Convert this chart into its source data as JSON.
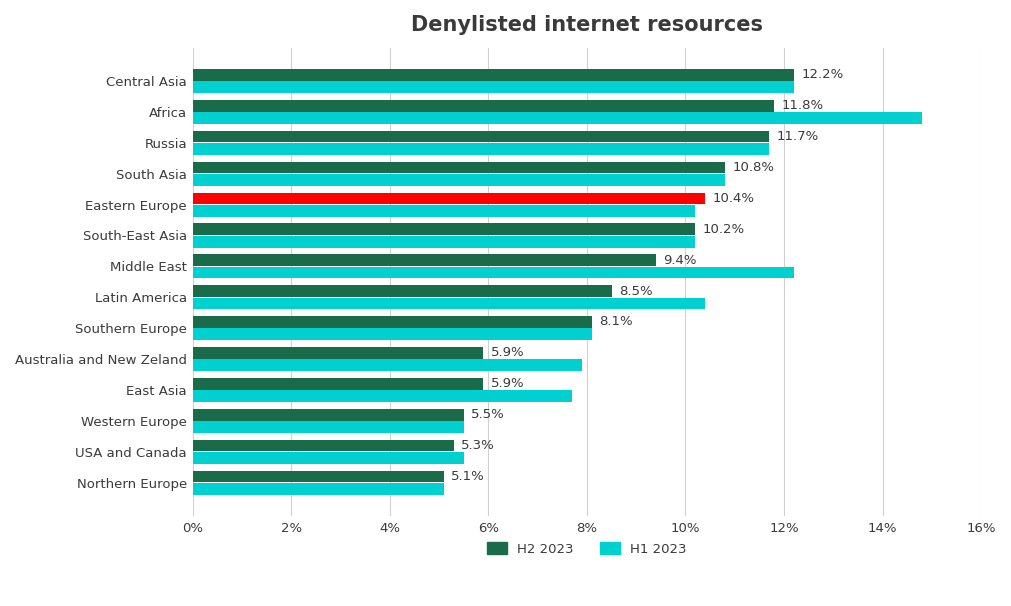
{
  "title": "Denylisted internet resources",
  "categories": [
    "Central Asia",
    "Africa",
    "Russia",
    "South Asia",
    "Eastern Europe",
    "South-East Asia",
    "Middle East",
    "Latin America",
    "Southern Europe",
    "Australia and New Zeland",
    "East Asia",
    "Western Europe",
    "USA and Canada",
    "Northern Europe"
  ],
  "h2_2023": [
    12.2,
    11.8,
    11.7,
    10.8,
    10.4,
    10.2,
    9.4,
    8.5,
    8.1,
    5.9,
    5.9,
    5.5,
    5.3,
    5.1
  ],
  "h1_2023": [
    12.2,
    14.8,
    11.7,
    10.8,
    10.2,
    10.2,
    12.2,
    10.4,
    8.1,
    7.9,
    7.7,
    5.5,
    5.5,
    5.1
  ],
  "h2_color": "#1a6b4a",
  "h1_color": "#00d0d0",
  "eastern_europe_h2_color": "#ff0000",
  "label_color": "#3a3a3a",
  "background_color": "#ffffff",
  "grid_color": "#d0d0d0",
  "xlim": [
    0,
    16
  ],
  "xticks": [
    0,
    2,
    4,
    6,
    8,
    10,
    12,
    14,
    16
  ],
  "legend_h2": "H2 2023",
  "legend_h1": "H1 2023",
  "title_fontsize": 15,
  "label_fontsize": 9.5,
  "tick_fontsize": 9.5
}
